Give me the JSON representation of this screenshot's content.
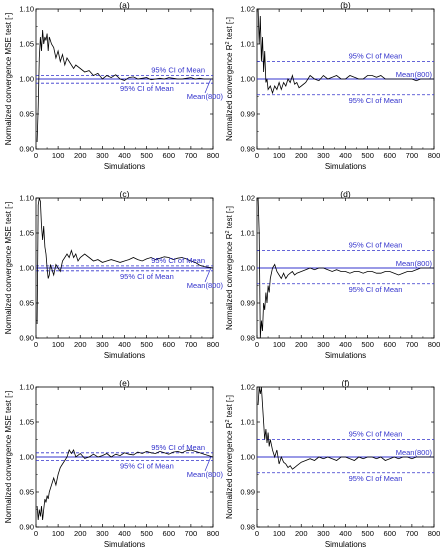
{
  "chart_data": [
    {
      "type": "line",
      "panel_label": "(a)",
      "xlabel": "Simulations",
      "ylabel": "Normalized convergence MSE test [-]",
      "xlim": [
        0,
        800
      ],
      "ylim": [
        0.9,
        1.1
      ],
      "xticks": [
        "0",
        "100",
        "200",
        "300",
        "400",
        "500",
        "600",
        "700",
        "800"
      ],
      "yticks": [
        "0.90",
        "0.95",
        "1.00",
        "1.05",
        "1.10"
      ],
      "mean": 1.0,
      "ci": [
        0.994,
        1.005
      ],
      "annotations": {
        "ci_upper": "95% CI of Mean",
        "ci_lower": "95% CI of Mean",
        "mean": "Mean(800)"
      },
      "series": [
        {
          "x": [
            5,
            10,
            15,
            20,
            25,
            30,
            35,
            40,
            45,
            50,
            55,
            60,
            70,
            80,
            90,
            100,
            110,
            120,
            130,
            140,
            150,
            160,
            170,
            180,
            200,
            220,
            240,
            260,
            280,
            300,
            320,
            340,
            360,
            380,
            400,
            420,
            440,
            460,
            480,
            500,
            520,
            540,
            560,
            580,
            600,
            620,
            640,
            660,
            680,
            700,
            720,
            740,
            760,
            780,
            800
          ],
          "y": [
            0.91,
            0.96,
            1.03,
            1.06,
            1.04,
            1.07,
            1.05,
            1.06,
            1.055,
            1.065,
            1.04,
            1.06,
            1.05,
            1.045,
            1.03,
            1.04,
            1.025,
            1.035,
            1.02,
            1.03,
            1.025,
            1.02,
            1.015,
            1.02,
            1.015,
            1.01,
            1.012,
            1.005,
            1.008,
            1.0,
            1.005,
            1.002,
            1.006,
            1.0,
            0.998,
            1.002,
            1.003,
            1.0,
            1.001,
            1.002,
            0.999,
            1.0,
            1.001,
            1.0,
            1.002,
            1.001,
            1.0,
            1.0,
            1.001,
            1.002,
            1.0,
            1.001,
            1.0,
            1.0,
            1.0
          ]
        }
      ]
    },
    {
      "type": "line",
      "panel_label": "(b)",
      "xlabel": "Simulations",
      "ylabel": "Normalized convergence R² test [-]",
      "xlim": [
        0,
        800
      ],
      "ylim": [
        0.98,
        1.02
      ],
      "xticks": [
        "0",
        "100",
        "200",
        "300",
        "400",
        "500",
        "600",
        "700",
        "800"
      ],
      "yticks": [
        "0.98",
        "0.99",
        "1.00",
        "1.01",
        "1.02"
      ],
      "mean": 1.0,
      "ci": [
        0.9955,
        1.005
      ],
      "annotations": {
        "ci_upper": "95% CI of Mean",
        "ci_lower": "95% CI of Mean",
        "mean": "Mean(800)"
      },
      "series": [
        {
          "x": [
            5,
            10,
            15,
            20,
            25,
            30,
            35,
            40,
            45,
            50,
            60,
            70,
            80,
            90,
            100,
            110,
            120,
            130,
            140,
            150,
            160,
            170,
            180,
            190,
            200,
            220,
            240,
            260,
            280,
            300,
            320,
            340,
            360,
            380,
            400,
            420,
            440,
            460,
            480,
            500,
            520,
            540,
            560,
            580,
            600,
            620,
            640,
            660,
            680,
            700,
            720,
            740,
            760,
            780,
            800
          ],
          "y": [
            1.02,
            1.01,
            1.018,
            1.005,
            1.012,
            1.002,
            1.008,
            0.999,
            1.0,
            0.997,
            0.998,
            0.996,
            0.998,
            0.997,
            0.999,
            0.997,
            0.999,
            0.998,
            1.0,
            0.999,
            1.001,
            0.9985,
            0.999,
            0.9975,
            0.998,
            0.999,
            1.001,
            1.0,
            0.9995,
            1.001,
            1.0,
            1.0005,
            1.001,
            1.0,
            1.0,
            1.001,
            1.0005,
            1.0,
            1.0,
            1.001,
            1.001,
            1.0005,
            1.001,
            1.0,
            1.0,
            1.0,
            1.0,
            1.0,
            1.0,
            1.0,
            0.9995,
            1.0,
            1.0,
            1.0,
            1.0
          ]
        }
      ]
    },
    {
      "type": "line",
      "panel_label": "(c)",
      "xlabel": "Simulations",
      "ylabel": "Normalized convergence MSE test [-]",
      "xlim": [
        0,
        800
      ],
      "ylim": [
        0.9,
        1.1
      ],
      "xticks": [
        "0",
        "100",
        "200",
        "300",
        "400",
        "500",
        "600",
        "700",
        "800"
      ],
      "yticks": [
        "0.90",
        "0.95",
        "1.00",
        "1.05",
        "1.10"
      ],
      "mean": 1.0,
      "ci": [
        0.996,
        1.003
      ],
      "annotations": {
        "ci_upper": "95% CI of Mean",
        "ci_lower": "95% CI of Mean",
        "mean": "Mean(800)"
      },
      "series": [
        {
          "x": [
            5,
            10,
            15,
            20,
            25,
            30,
            35,
            40,
            45,
            50,
            55,
            60,
            65,
            70,
            80,
            90,
            100,
            110,
            120,
            130,
            140,
            150,
            160,
            170,
            180,
            190,
            200,
            220,
            240,
            260,
            280,
            300,
            320,
            340,
            360,
            380,
            400,
            420,
            440,
            460,
            480,
            500,
            520,
            540,
            560,
            580,
            600,
            620,
            640,
            660,
            680,
            700,
            720,
            740,
            760,
            780,
            800
          ],
          "y": [
            0.92,
            1.09,
            1.1,
            1.095,
            1.06,
            1.04,
            1.06,
            1.03,
            1.02,
            1.0,
            0.985,
            0.99,
            1.005,
            1.0,
            0.99,
            1.005,
            1.0,
            0.995,
            1.01,
            1.015,
            1.02,
            1.015,
            1.025,
            1.015,
            1.02,
            1.01,
            1.015,
            1.02,
            1.015,
            1.01,
            1.012,
            1.008,
            1.01,
            1.012,
            1.01,
            1.008,
            1.01,
            1.012,
            1.015,
            1.012,
            1.01,
            1.013,
            1.015,
            1.012,
            1.014,
            1.016,
            1.015,
            1.012,
            1.014,
            1.015,
            1.013,
            1.01,
            1.008,
            1.004,
            1.002,
            1.001,
            1.0
          ]
        }
      ]
    },
    {
      "type": "line",
      "panel_label": "(d)",
      "xlabel": "Simulations",
      "ylabel": "Normalized convergence R² test [-]",
      "xlim": [
        0,
        800
      ],
      "ylim": [
        0.98,
        1.02
      ],
      "xticks": [
        "0",
        "100",
        "200",
        "300",
        "400",
        "500",
        "600",
        "700",
        "800"
      ],
      "yticks": [
        "0.98",
        "0.99",
        "1.00",
        "1.01",
        "1.02"
      ],
      "mean": 1.0,
      "ci": [
        0.9955,
        1.005
      ],
      "annotations": {
        "ci_upper": "95% CI of Mean",
        "ci_lower": "95% CI of Mean",
        "mean": "Mean(800)"
      },
      "series": [
        {
          "x": [
            5,
            10,
            15,
            20,
            25,
            30,
            35,
            40,
            45,
            50,
            55,
            60,
            70,
            80,
            90,
            100,
            110,
            120,
            130,
            140,
            150,
            160,
            170,
            180,
            200,
            220,
            240,
            260,
            280,
            300,
            320,
            340,
            360,
            380,
            400,
            420,
            440,
            460,
            480,
            500,
            520,
            540,
            560,
            580,
            600,
            620,
            640,
            660,
            680,
            700,
            720,
            740,
            760,
            780,
            800
          ],
          "y": [
            1.02,
            1.01,
            0.98,
            0.985,
            0.982,
            0.99,
            0.988,
            0.993,
            0.99,
            0.995,
            0.993,
            0.997,
            1.0,
            1.001,
            0.999,
            0.998,
            0.997,
            0.9985,
            0.997,
            0.998,
            0.9985,
            0.999,
            0.998,
            0.9985,
            0.999,
            0.9995,
            1.0,
            0.9995,
            1.0,
            1.0,
            0.9995,
            0.999,
            0.9995,
            0.999,
            0.999,
            0.9985,
            0.999,
            0.999,
            0.9985,
            0.999,
            0.999,
            0.9985,
            0.9985,
            0.999,
            0.999,
            0.9985,
            0.998,
            0.9985,
            0.999,
            0.999,
            0.9995,
            1.0,
            1.0,
            1.0,
            1.0
          ]
        }
      ]
    },
    {
      "type": "line",
      "panel_label": "(e)",
      "xlabel": "Simulations",
      "ylabel": "Normalized convergence MSE test [-]",
      "xlim": [
        0,
        800
      ],
      "ylim": [
        0.9,
        1.1
      ],
      "xticks": [
        "0",
        "100",
        "200",
        "300",
        "400",
        "500",
        "600",
        "700",
        "800"
      ],
      "yticks": [
        "0.90",
        "0.95",
        "1.00",
        "1.05",
        "1.10"
      ],
      "mean": 1.0,
      "ci": [
        0.995,
        1.006
      ],
      "annotations": {
        "ci_upper": "95% CI of Mean",
        "ci_lower": "95% CI of Mean",
        "mean": "Mean(800)"
      },
      "series": [
        {
          "x": [
            5,
            10,
            15,
            20,
            25,
            30,
            35,
            40,
            45,
            50,
            55,
            60,
            70,
            80,
            90,
            100,
            110,
            120,
            130,
            140,
            150,
            160,
            170,
            180,
            200,
            220,
            240,
            260,
            280,
            300,
            320,
            340,
            360,
            380,
            400,
            420,
            440,
            460,
            480,
            500,
            520,
            540,
            560,
            580,
            600,
            620,
            640,
            660,
            680,
            700,
            720,
            740,
            760,
            780,
            800
          ],
          "y": [
            0.93,
            0.91,
            0.925,
            0.915,
            0.93,
            0.91,
            0.925,
            0.94,
            0.935,
            0.945,
            0.94,
            0.95,
            0.96,
            0.97,
            0.96,
            0.975,
            0.985,
            0.99,
            0.995,
            1.0,
            1.01,
            1.005,
            1.01,
            1.0,
            1.005,
            0.998,
            1.0,
            1.004,
            1.0,
            1.002,
            1.005,
            1.0,
            1.004,
            1.002,
            1.006,
            1.004,
            1.003,
            1.007,
            1.005,
            1.008,
            1.006,
            1.005,
            1.008,
            1.006,
            1.004,
            1.007,
            1.008,
            1.006,
            1.009,
            1.01,
            1.008,
            1.006,
            1.004,
            1.002,
            1.0
          ]
        }
      ]
    },
    {
      "type": "line",
      "panel_label": "(f)",
      "xlabel": "Simulations",
      "ylabel": "Normalized convergence R² test [-]",
      "xlim": [
        0,
        800
      ],
      "ylim": [
        0.98,
        1.02
      ],
      "xticks": [
        "0",
        "100",
        "200",
        "300",
        "400",
        "500",
        "600",
        "700",
        "800"
      ],
      "yticks": [
        "0.98",
        "0.99",
        "1.00",
        "1.01",
        "1.02"
      ],
      "mean": 1.0,
      "ci": [
        0.9955,
        1.005
      ],
      "annotations": {
        "ci_upper": "95% CI of Mean",
        "ci_lower": "95% CI of Mean",
        "mean": "Mean(800)"
      },
      "series": [
        {
          "x": [
            5,
            10,
            15,
            20,
            25,
            30,
            35,
            40,
            45,
            50,
            55,
            60,
            70,
            80,
            90,
            100,
            110,
            120,
            130,
            140,
            150,
            160,
            170,
            180,
            200,
            220,
            240,
            260,
            280,
            300,
            320,
            340,
            360,
            380,
            400,
            420,
            440,
            460,
            480,
            500,
            520,
            540,
            560,
            580,
            600,
            620,
            640,
            660,
            680,
            700,
            720,
            740,
            760,
            780,
            800
          ],
          "y": [
            1.015,
            1.02,
            1.018,
            1.02,
            1.015,
            1.01,
            1.005,
            1.008,
            1.004,
            1.007,
            1.003,
            1.005,
            1.002,
            1.0,
            1.002,
            0.998,
            1.0,
            0.9985,
            0.998,
            0.997,
            0.9975,
            0.9965,
            0.997,
            0.9975,
            0.9985,
            0.999,
            0.9995,
            0.999,
            1.0,
            0.9995,
            1.0,
            0.9995,
            0.999,
            1.0,
            1.0,
            0.9995,
            0.999,
            1.0,
            0.9995,
            1.0,
            1.0,
            0.9995,
            1.0,
            0.999,
            0.9995,
            1.0,
            0.9995,
            1.0,
            1.0,
            0.9995,
            1.0,
            1.0,
            1.0,
            1.0,
            1.0
          ]
        }
      ]
    }
  ]
}
